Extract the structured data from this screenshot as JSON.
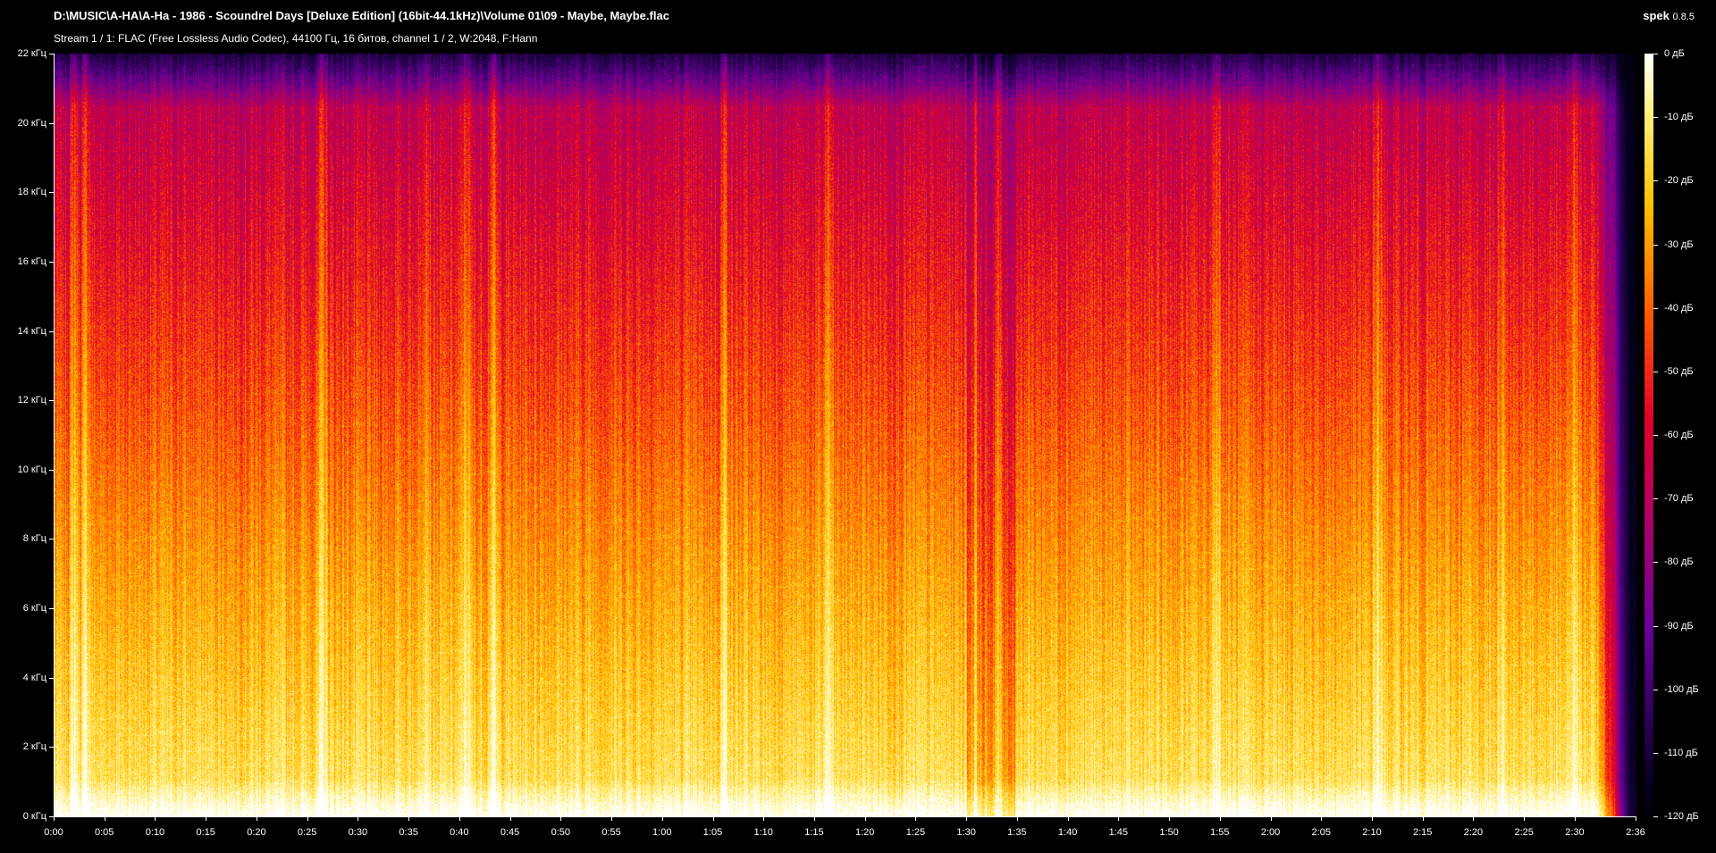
{
  "window": {
    "title": "D:\\MUSIC\\A-HA\\A-Ha - 1986 - Scoundrel Days [Deluxe Edition] (16bit-44.1kHz)\\Volume 01\\09 - Maybe, Maybe.flac",
    "stream_info": "Stream 1 / 1: FLAC (Free Lossless Audio Codec), 44100 Гц, 16 битов, channel 1 / 2, W:2048, F:Hann",
    "app_name": "spek",
    "app_version": "0.8.5"
  },
  "axes": {
    "frequency_ticks": [
      "0 кГц",
      "2 кГц",
      "4 кГц",
      "6 кГц",
      "8 кГц",
      "10 кГц",
      "12 кГц",
      "14 кГц",
      "16 кГц",
      "18 кГц",
      "20 кГц",
      "22 кГц"
    ],
    "frequency_max_khz": 22,
    "time_ticks": [
      "0:00",
      "0:05",
      "0:10",
      "0:15",
      "0:20",
      "0:25",
      "0:30",
      "0:35",
      "0:40",
      "0:45",
      "0:50",
      "0:55",
      "1:00",
      "1:05",
      "1:10",
      "1:15",
      "1:20",
      "1:25",
      "1:30",
      "1:35",
      "1:40",
      "1:45",
      "1:50",
      "1:55",
      "2:00",
      "2:05",
      "2:10",
      "2:15",
      "2:20",
      "2:25",
      "2:30",
      "2:36"
    ],
    "duration_seconds": 156,
    "db_ticks": [
      "0 дБ",
      "-10 дБ",
      "-20 дБ",
      "-30 дБ",
      "-40 дБ",
      "-50 дБ",
      "-60 дБ",
      "-70 дБ",
      "-80 дБ",
      "-90 дБ",
      "-100 дБ",
      "-110 дБ",
      "-120 дБ"
    ]
  },
  "colors": {
    "background": "#000000",
    "palette": [
      "#000008",
      "#06001e",
      "#2c0058",
      "#6a0096",
      "#a8006a",
      "#e0002a",
      "#ff5a00",
      "#ffc000",
      "#fff07a",
      "#ffffff"
    ]
  }
}
